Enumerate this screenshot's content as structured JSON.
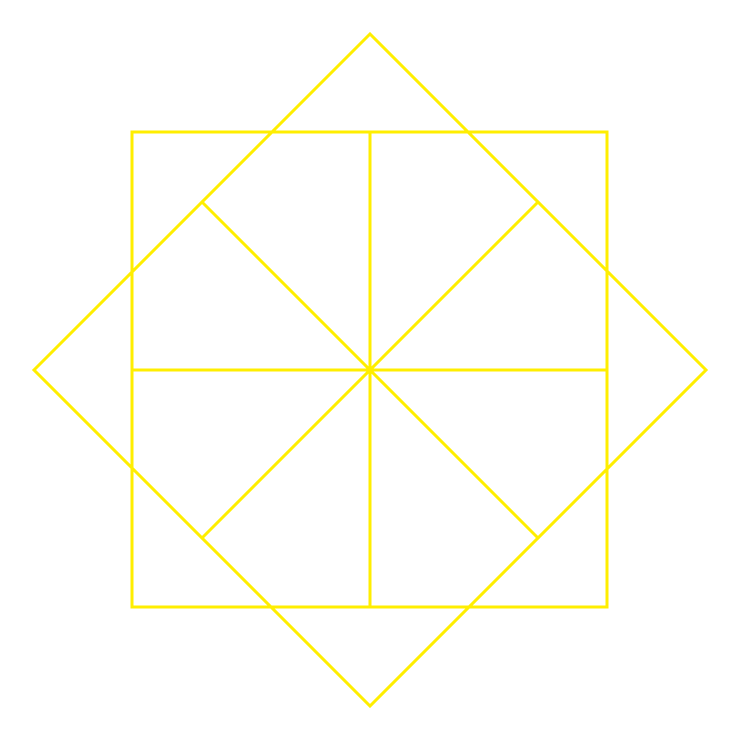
{
  "figure": {
    "background": "#ffffff",
    "stroke_color": "#ffee00",
    "shapes": [
      {
        "name": "axis-aligned-square",
        "kind": "square"
      },
      {
        "name": "rotated-square",
        "kind": "square",
        "rotation_degrees": 45
      }
    ],
    "divisions": [
      {
        "name": "vertical-midline"
      },
      {
        "name": "horizontal-midline"
      },
      {
        "name": "diagonal-ne-sw"
      },
      {
        "name": "diagonal-nw-se"
      }
    ]
  }
}
